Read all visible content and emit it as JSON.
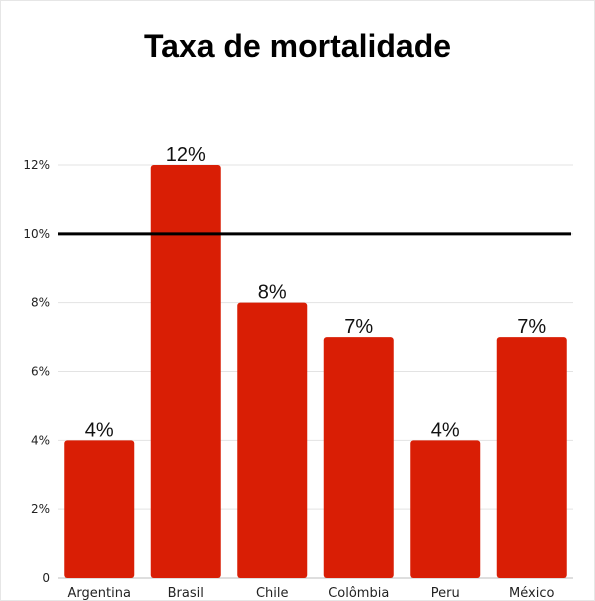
{
  "chart_data": {
    "type": "bar",
    "title": "Taxa de mortalidade",
    "categories": [
      "Argentina",
      "Brasil",
      "Chile",
      "Colômbia",
      "Peru",
      "México"
    ],
    "values": [
      4,
      12,
      8,
      7,
      4,
      7
    ],
    "data_labels": [
      "4%",
      "12%",
      "8%",
      "7%",
      "4%",
      "7%"
    ],
    "ylim": [
      0,
      12
    ],
    "yticks": [
      0,
      2,
      4,
      6,
      8,
      10,
      12
    ],
    "ytick_labels": [
      "0",
      "2%",
      "4%",
      "6%",
      "8%",
      "10%",
      "12%"
    ],
    "reference_line": 10,
    "grid": true,
    "bar_color": "#d91e05",
    "reference_line_color": "#000000"
  }
}
